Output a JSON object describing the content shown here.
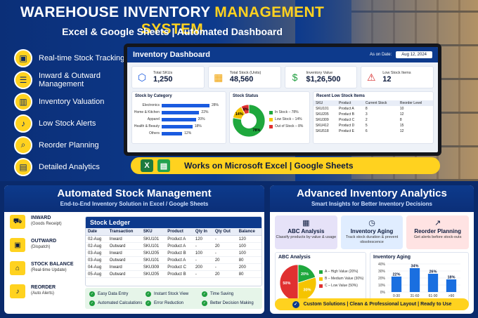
{
  "header": {
    "title_part1": "WAREHOUSE INVENTORY ",
    "title_part2": "MANAGEMENT SYSTEM",
    "subtitle": "Excel & Google Sheets  |  Automated Dashboard"
  },
  "features": [
    {
      "icon": "box-icon",
      "glyph": "▣",
      "label": "Real-time Stock Tracking"
    },
    {
      "icon": "clipboard-icon",
      "glyph": "☰",
      "label": "Inward & Outward Management"
    },
    {
      "icon": "chart-icon",
      "glyph": "▥",
      "label": "Inventory Valuation"
    },
    {
      "icon": "bell-icon",
      "glyph": "♪",
      "label": "Low Stock Alerts"
    },
    {
      "icon": "search-icon",
      "glyph": "⌕",
      "label": "Reorder Planning"
    },
    {
      "icon": "analytics-icon",
      "glyph": "▤",
      "label": "Detailed Analytics"
    }
  ],
  "dashboard": {
    "title": "Inventory Dashboard",
    "as_on_label": "As on Date:",
    "date": "Aug 12, 2024",
    "kpis": [
      {
        "icon": "cube-icon",
        "glyph": "⬡",
        "color": "#1a5be0",
        "label": "Total SKUs",
        "value": "1,250"
      },
      {
        "icon": "boxes-icon",
        "glyph": "▦",
        "color": "#f0a000",
        "label": "Total Stock (Units)",
        "value": "48,560"
      },
      {
        "icon": "dollar-icon",
        "glyph": "$",
        "color": "#1f9d3e",
        "label": "Inventory Value",
        "value": "$1,26,500"
      },
      {
        "icon": "warning-icon",
        "glyph": "⚠",
        "color": "#d62828",
        "label": "Low Stock Items",
        "value": "12"
      }
    ],
    "category_title": "Stock by Category",
    "categories": [
      {
        "name": "Electronics",
        "pct": 28,
        "label": "28%"
      },
      {
        "name": "Home & Kitchen",
        "pct": 22,
        "label": "22%"
      },
      {
        "name": "Apparel",
        "pct": 20,
        "label": "20%"
      },
      {
        "name": "Health & Beauty",
        "pct": 18,
        "label": "18%"
      },
      {
        "name": "Others",
        "pct": 12,
        "label": "12%"
      }
    ],
    "status_title": "Stock Status",
    "status": [
      {
        "name": "In Stock – 78%",
        "value": 78,
        "label": "78%",
        "color": "#1fa83d"
      },
      {
        "name": "Low Stock – 14%",
        "value": 14,
        "label": "14%",
        "color": "#f5c400"
      },
      {
        "name": "Out of Stock – 8%",
        "value": 8,
        "label": "8%",
        "color": "#e03030"
      }
    ],
    "low_stock_title": "Recent Low Stock Items",
    "low_stock_headers": [
      "SKU",
      "Product",
      "Current Stock",
      "Reorder Level"
    ],
    "low_stock_rows": [
      [
        "SKU101",
        "Product A",
        "8",
        "10"
      ],
      [
        "SKU205",
        "Product B",
        "3",
        "12"
      ],
      [
        "SKU309",
        "Product C",
        "2",
        "8"
      ],
      [
        "SKU412",
        "Product D",
        "5",
        "15"
      ],
      [
        "SKU518",
        "Product E",
        "6",
        "12"
      ]
    ]
  },
  "compat": {
    "text": "Works on Microsoft Excel  |  Google Sheets",
    "excel_letter": "X",
    "sheets_letter": "▤"
  },
  "automated": {
    "title": "Automated Stock Management",
    "subtitle": "End-to-End Inventory Solution in Excel / Google Sheets",
    "flow": [
      {
        "icon": "truck-icon",
        "glyph": "⛟",
        "title": "INWARD",
        "sub": "(Goods Receipt)"
      },
      {
        "icon": "outbox-icon",
        "glyph": "▣",
        "title": "OUTWARD",
        "sub": "(Dispatch)"
      },
      {
        "icon": "warehouse-icon",
        "glyph": "⌂",
        "title": "STOCK BALANCE",
        "sub": "(Real-time Update)"
      },
      {
        "icon": "alarm-icon",
        "glyph": "♪",
        "title": "REORDER",
        "sub": "(Auto Alerts)"
      }
    ],
    "ledger_title": "Stock Ledger",
    "ledger_headers": [
      "Date",
      "Transaction",
      "SKU",
      "Product",
      "Qty In",
      "Qty Out",
      "Balance"
    ],
    "ledger_rows": [
      [
        "02-Aug",
        "Inward",
        "SKU101",
        "Product A",
        "120",
        "-",
        "120"
      ],
      [
        "02-Aug",
        "Outward",
        "SKU101",
        "Product A",
        "-",
        "20",
        "100"
      ],
      [
        "03-Aug",
        "Inward",
        "SKU205",
        "Product B",
        "100",
        "-",
        "100"
      ],
      [
        "03-Aug",
        "Outward",
        "SKU101",
        "Product A",
        "-",
        "20",
        "80"
      ],
      [
        "04-Aug",
        "Inward",
        "SKU309",
        "Product C",
        "200",
        "-",
        "200"
      ],
      [
        "05-Aug",
        "Outward",
        "SKU205",
        "Product B",
        "-",
        "20",
        "80"
      ]
    ],
    "checks": [
      "Easy Data Entry",
      "Instant Stock View",
      "Time Saving",
      "Automated Calculations",
      "Error Reduction",
      "Better Decision Making"
    ]
  },
  "analytics": {
    "title": "Advanced Inventory Analytics",
    "subtitle": "Smart Insights for Better Inventory Decisions",
    "cards": [
      {
        "icon": "abc-icon",
        "glyph": "▦",
        "bg": "#e6e2f8",
        "title": "ABC Analysis",
        "desc": "Classify products by value & usage"
      },
      {
        "icon": "clock-icon",
        "glyph": "◷",
        "bg": "#e0edff",
        "title": "Inventory Aging",
        "desc": "Track stock duration & prevent obsolescence"
      },
      {
        "icon": "trend-icon",
        "glyph": "↗",
        "bg": "#ffe3e3",
        "title": "Reorder Planning",
        "desc": "Get alerts before stock-outs"
      }
    ],
    "abc_title": "ABC Analysis",
    "abc": [
      {
        "name": "A – High Value (20%)",
        "value": 20,
        "label": "20%",
        "color": "#1fa83d"
      },
      {
        "name": "B – Medium Value (30%)",
        "value": 30,
        "label": "30%",
        "color": "#f5c400"
      },
      {
        "name": "C – Low Value (50%)",
        "value": 50,
        "label": "50%",
        "color": "#e03030"
      }
    ],
    "aging_title": "Inventory Aging",
    "footer": "Custom Solutions   |   Clean & Professional Layout   |   Ready to Use"
  },
  "chart_data": [
    {
      "type": "bar",
      "title": "Inventory Aging",
      "categories": [
        "0-30 Days",
        "31-60 Days",
        "61-90 Days",
        ">90 Days"
      ],
      "values": [
        22,
        34,
        26,
        18
      ],
      "data_labels": [
        "22%",
        "34%",
        "26%",
        "18%"
      ],
      "ylim": [
        0,
        40
      ],
      "yticks": [
        "0%",
        "10%",
        "20%",
        "30%",
        "40%"
      ]
    }
  ]
}
